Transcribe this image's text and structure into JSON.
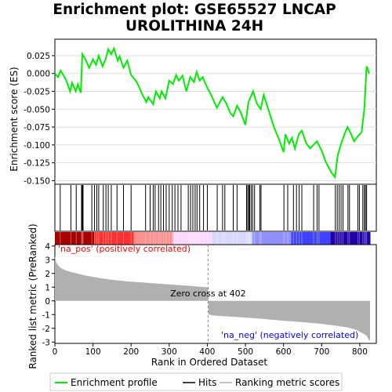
{
  "title_line1": "Enrichment plot: GSE65527 LNCAP",
  "title_line2": "UROLITHINA 24H",
  "chart_data": {
    "type": "line",
    "n_genes": 827,
    "top_panel": {
      "ylabel": "Enrichment score (ES)",
      "ylim": [
        -0.155,
        0.048
      ],
      "yticks": [
        0.025,
        0.0,
        -0.025,
        -0.05,
        -0.075,
        -0.1,
        -0.125,
        -0.15
      ],
      "ytick_labels": [
        "0.025",
        "0.000",
        "-0.025",
        "-0.050",
        "-0.075",
        "-0.100",
        "-0.125",
        "-0.150"
      ],
      "grid": true,
      "line_color": "#00ee00",
      "es_curve": [
        [
          0,
          0.0
        ],
        [
          8,
          -0.005
        ],
        [
          15,
          0.004
        ],
        [
          22,
          -0.002
        ],
        [
          30,
          -0.01
        ],
        [
          40,
          -0.025
        ],
        [
          45,
          -0.013
        ],
        [
          55,
          -0.025
        ],
        [
          60,
          -0.015
        ],
        [
          68,
          -0.027
        ],
        [
          72,
          0.027
        ],
        [
          80,
          0.02
        ],
        [
          90,
          0.008
        ],
        [
          100,
          0.02
        ],
        [
          108,
          0.012
        ],
        [
          115,
          0.025
        ],
        [
          125,
          0.01
        ],
        [
          133,
          0.02
        ],
        [
          140,
          0.034
        ],
        [
          148,
          0.027
        ],
        [
          155,
          0.035
        ],
        [
          165,
          0.018
        ],
        [
          170,
          0.024
        ],
        [
          180,
          0.008
        ],
        [
          190,
          0.018
        ],
        [
          200,
          -0.002
        ],
        [
          215,
          -0.012
        ],
        [
          230,
          -0.03
        ],
        [
          240,
          -0.04
        ],
        [
          245,
          -0.033
        ],
        [
          258,
          -0.043
        ],
        [
          265,
          -0.025
        ],
        [
          275,
          -0.035
        ],
        [
          280,
          -0.025
        ],
        [
          290,
          -0.035
        ],
        [
          300,
          -0.01
        ],
        [
          310,
          -0.015
        ],
        [
          318,
          -0.002
        ],
        [
          325,
          -0.01
        ],
        [
          335,
          -0.003
        ],
        [
          345,
          -0.025
        ],
        [
          355,
          -0.005
        ],
        [
          365,
          -0.012
        ],
        [
          372,
          0.002
        ],
        [
          380,
          -0.01
        ],
        [
          388,
          -0.005
        ],
        [
          400,
          -0.02
        ],
        [
          410,
          -0.03
        ],
        [
          425,
          -0.048
        ],
        [
          440,
          -0.033
        ],
        [
          450,
          -0.042
        ],
        [
          460,
          -0.055
        ],
        [
          468,
          -0.06
        ],
        [
          478,
          -0.045
        ],
        [
          488,
          -0.055
        ],
        [
          500,
          -0.072
        ],
        [
          508,
          -0.04
        ],
        [
          520,
          -0.025
        ],
        [
          530,
          -0.042
        ],
        [
          540,
          -0.05
        ],
        [
          548,
          -0.03
        ],
        [
          560,
          -0.05
        ],
        [
          575,
          -0.075
        ],
        [
          590,
          -0.095
        ],
        [
          600,
          -0.11
        ],
        [
          605,
          -0.085
        ],
        [
          615,
          -0.098
        ],
        [
          622,
          -0.09
        ],
        [
          630,
          -0.105
        ],
        [
          640,
          -0.085
        ],
        [
          648,
          -0.08
        ],
        [
          660,
          -0.098
        ],
        [
          670,
          -0.105
        ],
        [
          678,
          -0.1
        ],
        [
          688,
          -0.095
        ],
        [
          700,
          -0.108
        ],
        [
          712,
          -0.125
        ],
        [
          725,
          -0.138
        ],
        [
          735,
          -0.145
        ],
        [
          742,
          -0.115
        ],
        [
          750,
          -0.1
        ],
        [
          760,
          -0.085
        ],
        [
          768,
          -0.075
        ],
        [
          775,
          -0.082
        ],
        [
          785,
          -0.095
        ],
        [
          795,
          -0.088
        ],
        [
          805,
          -0.082
        ],
        [
          812,
          -0.05
        ],
        [
          818,
          0.01
        ],
        [
          825,
          0.0
        ]
      ]
    },
    "hits": {
      "positions": [
        14,
        42,
        56,
        70,
        72,
        74,
        97,
        104,
        110,
        115,
        127,
        134,
        140,
        148,
        163,
        180,
        200,
        238,
        250,
        258,
        263,
        272,
        278,
        285,
        292,
        300,
        308,
        315,
        323,
        331,
        350,
        356,
        362,
        368,
        373,
        380,
        390,
        400,
        426,
        440,
        446,
        468,
        478,
        503,
        506,
        509,
        511,
        515,
        519,
        524,
        538,
        541,
        601,
        611,
        626,
        634,
        641,
        648,
        679,
        688,
        693,
        736,
        741,
        746,
        751,
        756,
        769,
        773,
        795,
        799,
        808,
        812,
        815,
        818
      ]
    },
    "rank_bar": {
      "colors": [
        "#a80000",
        "#ff3030",
        "#ff9090",
        "#ffd8ff",
        "#d8d8ff",
        "#9090ff",
        "#4040ff",
        "#2000a8"
      ],
      "label_pos": "'na_pos' (positively correlated)",
      "label_neg": "'na_neg' (negatively correlated)",
      "label_pos_color": "#ff0000",
      "label_neg_color": "#0000ff"
    },
    "metric_panel": {
      "ylabel": "Ranked list metric (PreRanked)",
      "ylim": [
        -3.1,
        4.1
      ],
      "yticks": [
        4,
        3,
        2,
        1,
        0,
        -1,
        -2,
        -3
      ],
      "ytick_labels": [
        "4",
        "3",
        "2",
        "1",
        "0",
        "-1",
        "-2",
        "-3"
      ],
      "fill_color": "#b0b0b0",
      "zero_cross_label": "Zero cross at 402",
      "zero_cross": 402,
      "metric_curve": [
        [
          0,
          3.3
        ],
        [
          3,
          2.85
        ],
        [
          8,
          2.6
        ],
        [
          15,
          2.4
        ],
        [
          30,
          2.2
        ],
        [
          50,
          2.05
        ],
        [
          80,
          1.85
        ],
        [
          120,
          1.65
        ],
        [
          160,
          1.5
        ],
        [
          200,
          1.4
        ],
        [
          250,
          1.3
        ],
        [
          300,
          1.2
        ],
        [
          350,
          1.1
        ],
        [
          395,
          1.0
        ],
        [
          402,
          0.98
        ],
        [
          403,
          -1.0
        ],
        [
          420,
          -1.08
        ],
        [
          480,
          -1.18
        ],
        [
          540,
          -1.3
        ],
        [
          600,
          -1.45
        ],
        [
          650,
          -1.55
        ],
        [
          700,
          -1.68
        ],
        [
          740,
          -1.82
        ],
        [
          770,
          -1.95
        ],
        [
          790,
          -2.1
        ],
        [
          800,
          -2.25
        ],
        [
          810,
          -2.4
        ],
        [
          818,
          -2.55
        ],
        [
          824,
          -2.85
        ],
        [
          827,
          -2.9
        ]
      ]
    },
    "xlabel": "Rank in Ordered Dataset",
    "xticks": [
      0,
      100,
      200,
      300,
      400,
      500,
      600,
      700,
      800
    ],
    "xtick_labels": [
      "0",
      "100",
      "200",
      "300",
      "400",
      "500",
      "600",
      "700",
      "800"
    ],
    "legend": {
      "placement": "bottom",
      "items": [
        {
          "label": "Enrichment profile",
          "color": "#00ee00"
        },
        {
          "label": "Hits",
          "color": "#000000"
        },
        {
          "label": "Ranking metric scores",
          "color": "#b0b0b0"
        }
      ]
    }
  }
}
